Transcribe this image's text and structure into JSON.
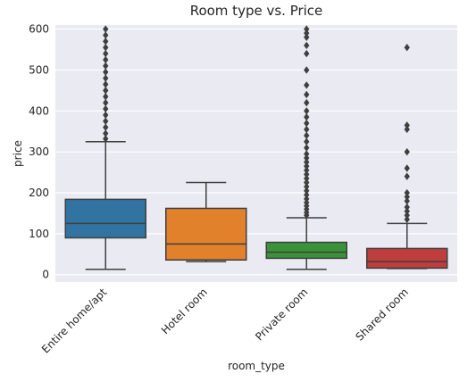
{
  "chart_data": {
    "type": "box",
    "title": "Room type vs. Price",
    "xlabel": "room_type",
    "ylabel": "price",
    "ylim": [
      -18,
      610
    ],
    "yticks": [
      0,
      100,
      200,
      300,
      400,
      500,
      600
    ],
    "grid": true,
    "categories": [
      "Entire home/apt",
      "Hotel room",
      "Private room",
      "Shared room"
    ],
    "boxes": [
      {
        "category": "Entire home/apt",
        "color": "#3274a1",
        "whisker_low": 13,
        "q1": 90,
        "median": 125,
        "q3": 184,
        "whisker_high": 325,
        "outliers": [
          332,
          345,
          360,
          375,
          390,
          405,
          420,
          435,
          450,
          465,
          480,
          495,
          510,
          525,
          540,
          555,
          570,
          585,
          600
        ]
      },
      {
        "category": "Hotel room",
        "color": "#e1812c",
        "whisker_low": 32,
        "q1": 36,
        "median": 75,
        "q3": 162,
        "whisker_high": 225,
        "outliers": []
      },
      {
        "category": "Private room",
        "color": "#3a923a",
        "whisker_low": 13,
        "q1": 40,
        "median": 55,
        "q3": 79,
        "whisker_high": 139,
        "outliers": [
          145,
          152,
          160,
          168,
          176,
          185,
          195,
          205,
          215,
          225,
          235,
          245,
          255,
          265,
          275,
          285,
          295,
          310,
          325,
          340,
          355,
          370,
          385,
          400,
          420,
          440,
          463,
          500,
          540,
          560,
          580,
          590,
          600
        ]
      },
      {
        "category": "Shared room",
        "color": "#c03d3e",
        "whisker_low": 15,
        "q1": 16,
        "median": 32,
        "q3": 64,
        "whisker_high": 125,
        "outliers": [
          135,
          145,
          155,
          165,
          180,
          190,
          200,
          240,
          260,
          300,
          355,
          365,
          555
        ]
      }
    ]
  }
}
